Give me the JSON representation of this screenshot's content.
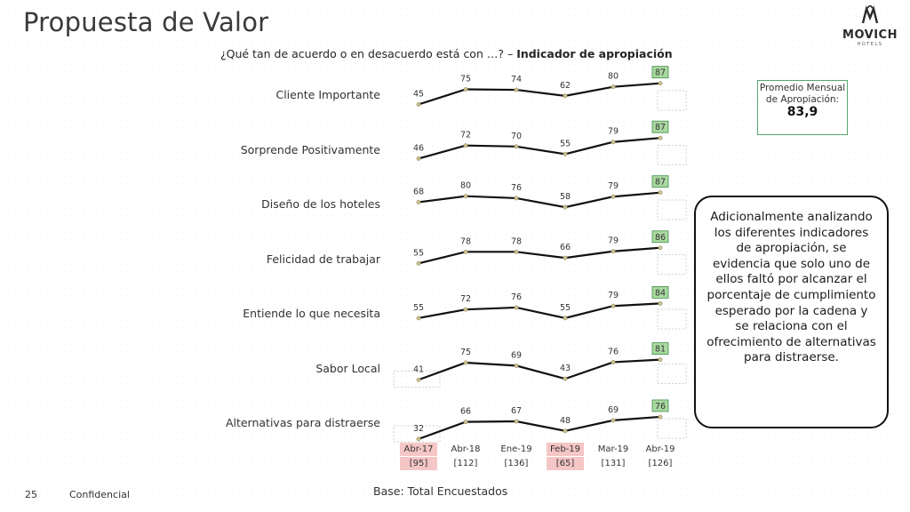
{
  "title": "Propuesta de Valor",
  "logo": {
    "name": "MOVICH",
    "sub": "HOTELS"
  },
  "question_prefix": "¿Qué tan de acuerdo o en desacuerdo está con …? – ",
  "question_bold": "Indicador de apropiación",
  "chart_data": {
    "type": "line",
    "x": [
      "Abr-17",
      "Abr-18",
      "Ene-19",
      "Feb-19",
      "Mar-19",
      "Abr-19"
    ],
    "x_bases": [
      "[95]",
      "[112]",
      "[136]",
      "[65]",
      "[131]",
      "[126]"
    ],
    "highlighted_x": [
      "Abr-17",
      "Feb-19"
    ],
    "series": [
      {
        "name": "Cliente Importante",
        "values": [
          45,
          75,
          74,
          62,
          80,
          87
        ]
      },
      {
        "name": "Sorprende Positivamente",
        "values": [
          46,
          72,
          70,
          55,
          79,
          87
        ]
      },
      {
        "name": "Diseño de los hoteles",
        "values": [
          68,
          80,
          76,
          58,
          79,
          87
        ]
      },
      {
        "name": "Felicidad de trabajar",
        "values": [
          55,
          78,
          78,
          66,
          79,
          86
        ]
      },
      {
        "name": "Entiende lo que necesita",
        "values": [
          55,
          72,
          76,
          55,
          79,
          84
        ]
      },
      {
        "name": "Sabor Local",
        "values": [
          41,
          75,
          69,
          43,
          76,
          81
        ]
      },
      {
        "name": "Alternativas para distraerse",
        "values": [
          32,
          66,
          67,
          48,
          69,
          76
        ]
      }
    ],
    "highlight_last_color": "#a9d8a0"
  },
  "avg_box": {
    "label": "Promedio Mensual de Apropiación:",
    "value": "83,9"
  },
  "note": "Adicionalmente analizando los diferentes indicadores de apropiación, se evidencia que solo uno de ellos faltó por alcanzar el porcentaje de cumplimiento esperado por la cadena y se relaciona con el ofrecimiento de alternativas para distraerse.",
  "footer": {
    "page": "25",
    "confidential": "Confidencial",
    "base": "Base: Total Encuestados"
  }
}
